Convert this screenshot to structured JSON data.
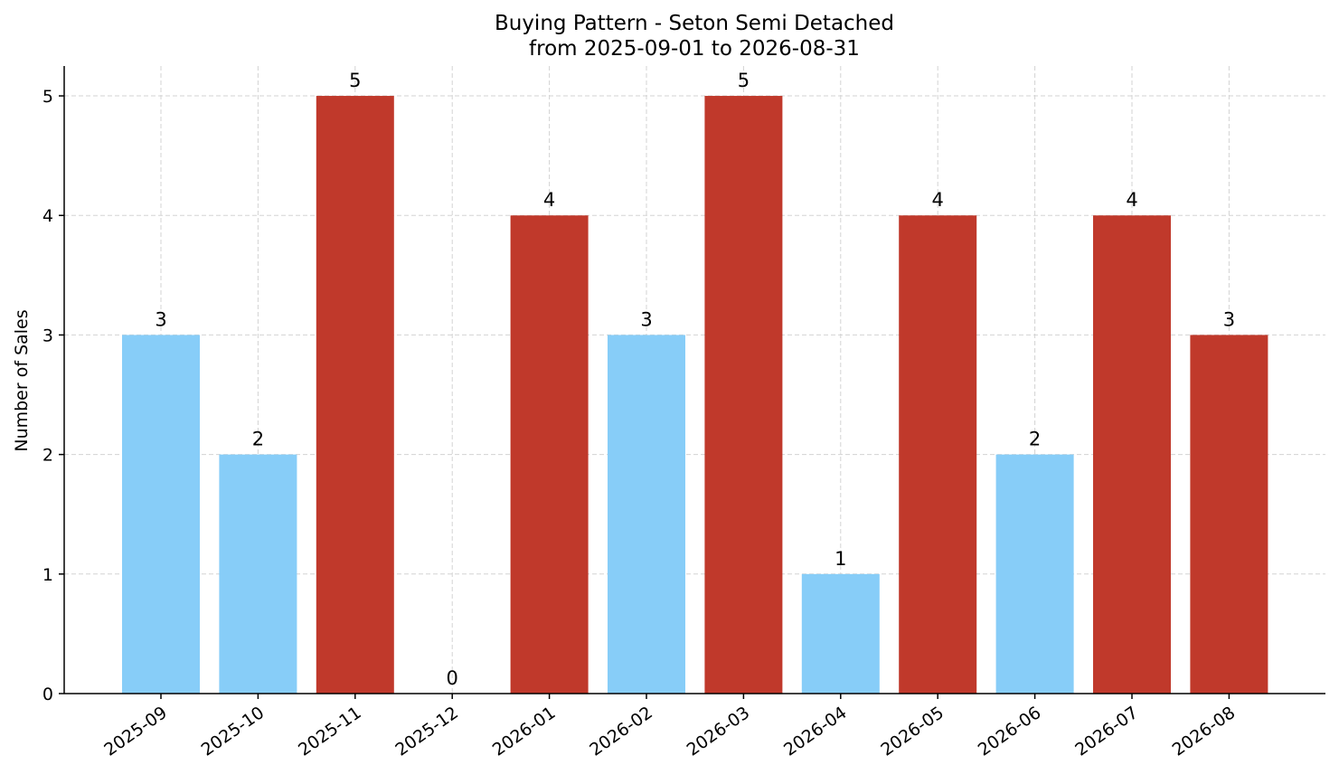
{
  "chart_data": {
    "type": "bar",
    "title": "Buying Pattern - Seton Semi Detached",
    "subtitle": "from 2025-09-01 to 2026-08-31",
    "xlabel": "",
    "ylabel": "Number of Sales",
    "categories": [
      "2025-09",
      "2025-10",
      "2025-11",
      "2025-12",
      "2026-01",
      "2026-02",
      "2026-03",
      "2026-04",
      "2026-05",
      "2026-06",
      "2026-07",
      "2026-08"
    ],
    "values": [
      3,
      2,
      5,
      0,
      4,
      3,
      5,
      1,
      4,
      2,
      4,
      3
    ],
    "bar_colors": [
      "#87cdf8",
      "#87cdf8",
      "#c0392b",
      "#c0392b",
      "#c0392b",
      "#87cdf8",
      "#c0392b",
      "#87cdf8",
      "#c0392b",
      "#87cdf8",
      "#c0392b",
      "#c0392b"
    ],
    "yticks": [
      0,
      1,
      2,
      3,
      4,
      5
    ],
    "ylim": [
      0,
      5.25
    ],
    "grid": true,
    "legend": "none"
  }
}
